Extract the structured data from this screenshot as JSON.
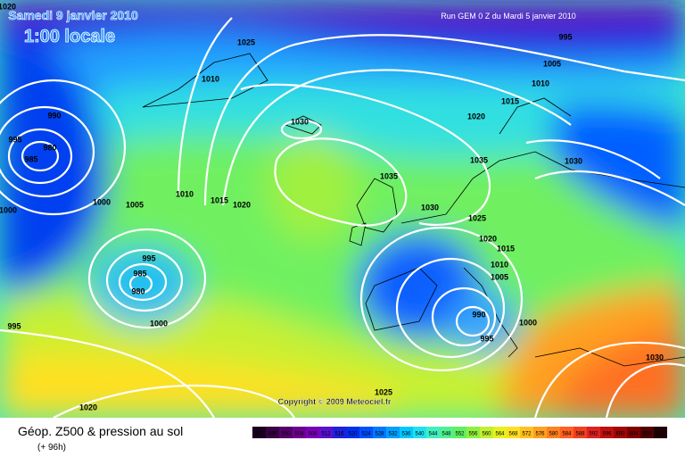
{
  "header": {
    "title": "Samedi 9 janvier 2010",
    "time": "1:00 locale",
    "run": "Run GEM 0 Z du Mardi 5 janvier 2010",
    "copyright": "Copyright © 2009 Meteociel.fr"
  },
  "footer": {
    "caption": "Géop. Z500 & pression au sol",
    "lead": "(+ 96h)"
  },
  "colorbar": {
    "levels": [
      492,
      496,
      500,
      504,
      508,
      512,
      516,
      520,
      524,
      528,
      532,
      536,
      540,
      544,
      548,
      552,
      556,
      560,
      564,
      568,
      572,
      576,
      580,
      584,
      588,
      592,
      596,
      600,
      604,
      608,
      612
    ],
    "colors": [
      "#1a0020",
      "#3a0045",
      "#55006a",
      "#6e0090",
      "#7a00b8",
      "#5a10d0",
      "#2020e0",
      "#0030f0",
      "#0050ff",
      "#0078ff",
      "#00a0ff",
      "#00c8ff",
      "#20e0f0",
      "#40f0c0",
      "#50f090",
      "#60f060",
      "#90f040",
      "#c0f030",
      "#e8f020",
      "#ffe020",
      "#ffc020",
      "#ffa020",
      "#ff8020",
      "#ff6020",
      "#f04020",
      "#e02020",
      "#c01010",
      "#a00808",
      "#800000",
      "#500000",
      "#200000"
    ]
  },
  "isobar_labels": [
    1020,
    1025,
    995,
    1005,
    1010,
    1015,
    1020,
    1030,
    990,
    995,
    980,
    985,
    1035,
    1030,
    1035,
    1010,
    1015,
    1020,
    1000,
    1005,
    1000,
    1030,
    1025,
    1020,
    1015,
    995,
    985,
    980,
    1010,
    1005,
    990,
    1000,
    995,
    1000,
    995,
    1030,
    1025,
    1020,
    1010
  ]
}
